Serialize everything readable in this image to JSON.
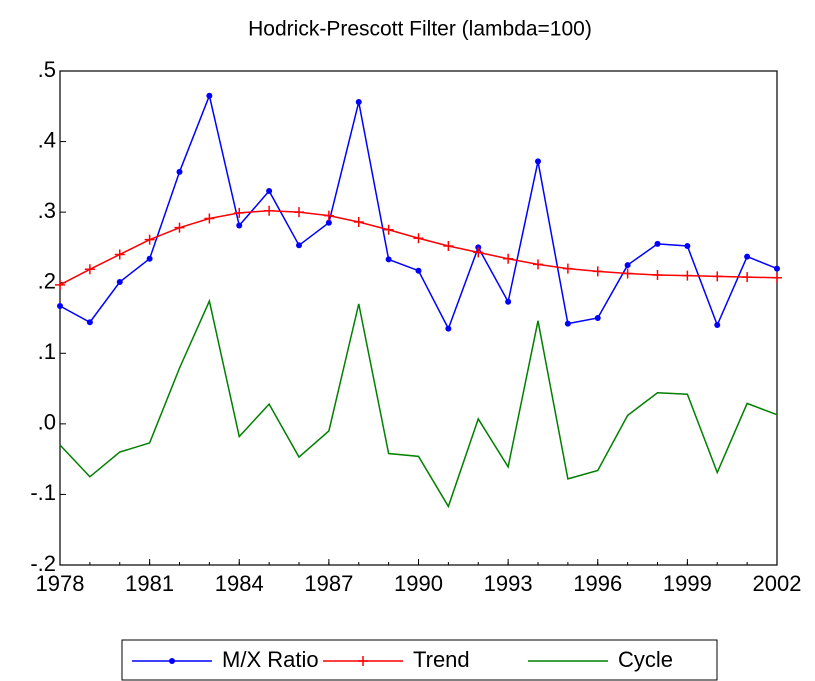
{
  "chart_data": {
    "type": "line",
    "title": "Hodrick-Prescott Filter (lambda=100)",
    "x": [
      1978,
      1979,
      1980,
      1981,
      1982,
      1983,
      1984,
      1985,
      1986,
      1987,
      1988,
      1989,
      1990,
      1991,
      1992,
      1993,
      1994,
      1995,
      1996,
      1997,
      1998,
      1999,
      2000,
      2001,
      2002
    ],
    "series": [
      {
        "name": "M/X Ratio",
        "color": "#0000ff",
        "marker": "dot",
        "values": [
          0.167,
          0.144,
          0.201,
          0.234,
          0.357,
          0.465,
          0.281,
          0.33,
          0.253,
          0.285,
          0.456,
          0.233,
          0.217,
          0.135,
          0.25,
          0.173,
          0.372,
          0.142,
          0.15,
          0.225,
          0.255,
          0.252,
          0.14,
          0.237,
          0.22
        ]
      },
      {
        "name": "Trend",
        "color": "#ff0000",
        "marker": "plus",
        "values": [
          0.197,
          0.219,
          0.24,
          0.261,
          0.278,
          0.291,
          0.299,
          0.302,
          0.3,
          0.295,
          0.286,
          0.275,
          0.263,
          0.252,
          0.243,
          0.234,
          0.226,
          0.22,
          0.216,
          0.213,
          0.211,
          0.21,
          0.209,
          0.208,
          0.207
        ]
      },
      {
        "name": "Cycle",
        "color": "#008000",
        "marker": "none",
        "values": [
          -0.03,
          -0.075,
          -0.04,
          -0.027,
          0.079,
          0.174,
          -0.018,
          0.028,
          -0.047,
          -0.01,
          0.17,
          -0.042,
          -0.046,
          -0.117,
          0.007,
          -0.061,
          0.146,
          -0.078,
          -0.066,
          0.012,
          0.044,
          0.042,
          -0.069,
          0.029,
          0.013
        ]
      }
    ],
    "xlim": [
      1978,
      2002
    ],
    "xticks": [
      1978,
      1981,
      1984,
      1987,
      1990,
      1993,
      1996,
      1999,
      2002
    ],
    "ylim": [
      -0.2,
      0.5
    ],
    "yticks": [
      {
        "value": -0.2,
        "label": "-.2"
      },
      {
        "value": -0.1,
        "label": "-.1"
      },
      {
        "value": 0,
        "label": ".0"
      },
      {
        "value": 0.1,
        "label": ".1"
      },
      {
        "value": 0.2,
        "label": ".2"
      },
      {
        "value": 0.3,
        "label": ".3"
      },
      {
        "value": 0.4,
        "label": ".4"
      },
      {
        "value": 0.5,
        "label": ".5"
      }
    ],
    "grid": false,
    "legend": "bottom"
  }
}
